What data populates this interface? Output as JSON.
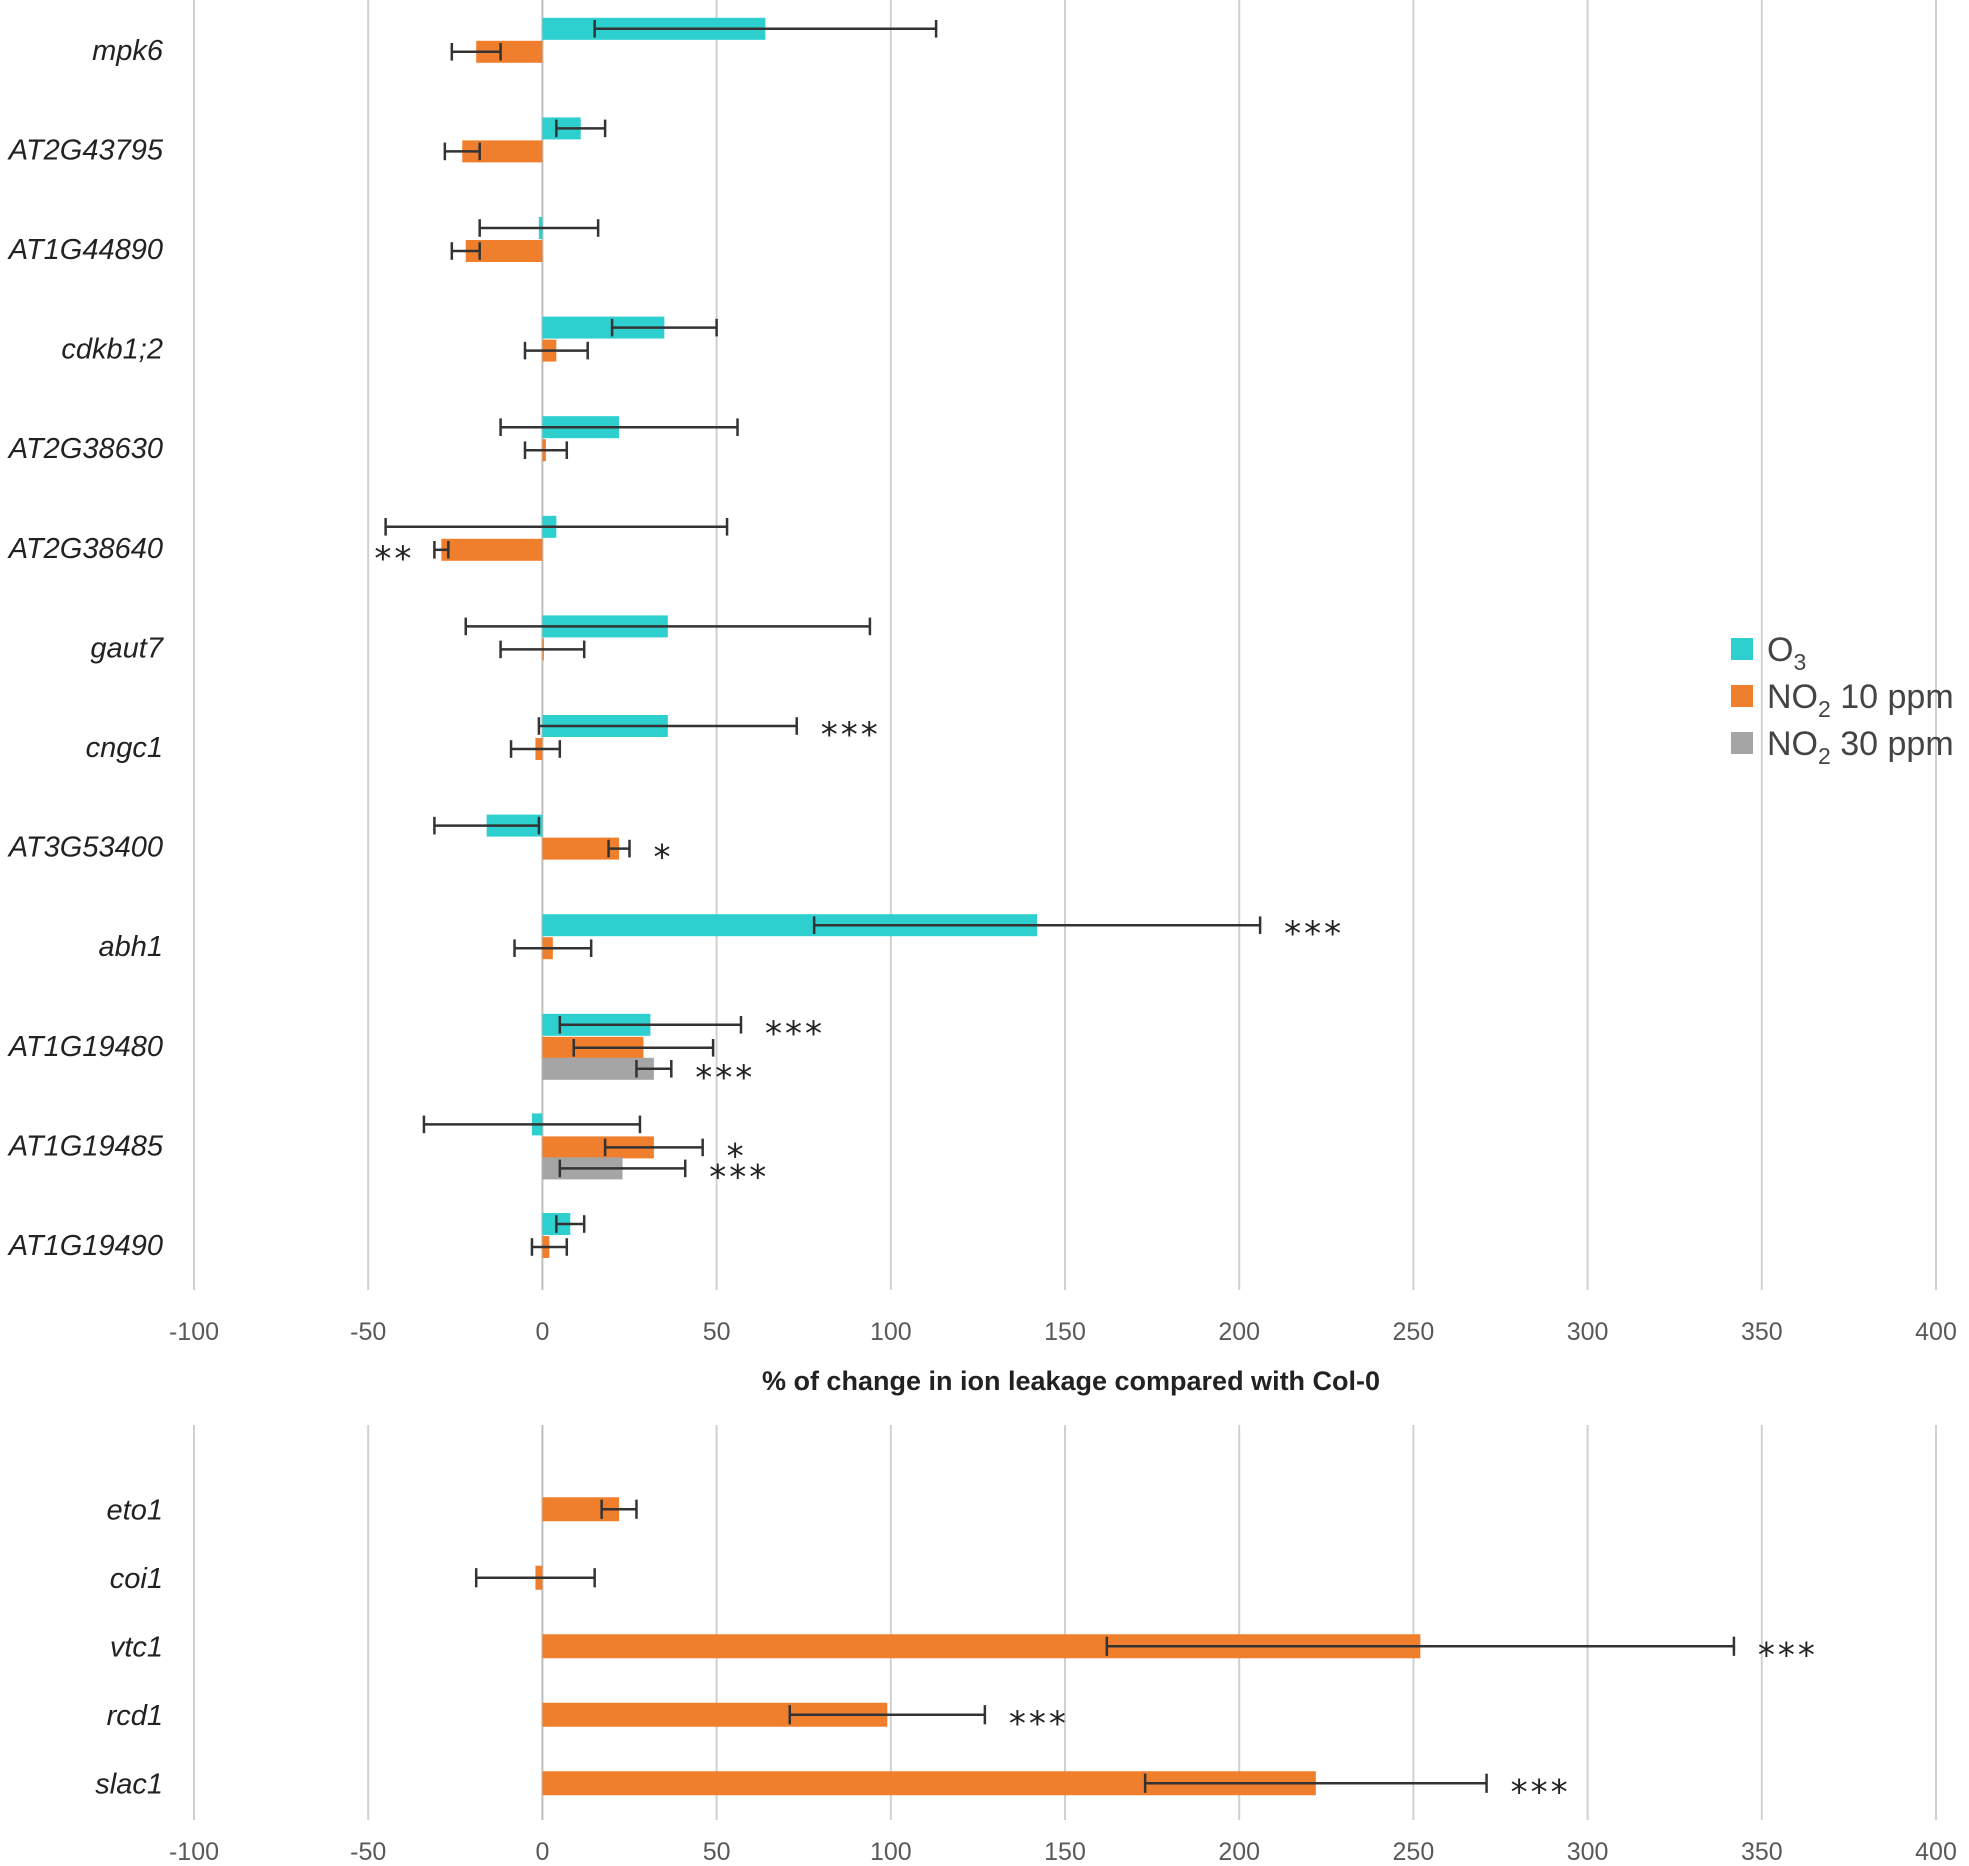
{
  "colors": {
    "O3": "#2ECFCF",
    "NO2_10ppm": "#F07F2D",
    "NO2_30ppm": "#A5A5A5",
    "grid": "#D0D0D0",
    "errorbar": "#333333"
  },
  "legend": {
    "items": [
      {
        "key": "O3",
        "text": "O",
        "sub": "3",
        "suffix": ""
      },
      {
        "key": "NO2_10ppm",
        "text": "NO",
        "sub": "2",
        "suffix": " 10 ppm"
      },
      {
        "key": "NO2_30ppm",
        "text": "NO",
        "sub": "2",
        "suffix": " 30 ppm"
      }
    ]
  },
  "chart_data": [
    {
      "type": "bar",
      "orientation": "horizontal",
      "xlabel": "% of change in ion leakage compared with Col-0",
      "xlim": [
        -100,
        400
      ],
      "xticks": [
        -100,
        -50,
        0,
        50,
        100,
        150,
        200,
        250,
        300,
        350,
        400
      ],
      "xtick_labels": [
        "-100",
        "-50",
        "0",
        "50",
        "100",
        "150",
        "200",
        "250",
        "300",
        "350",
        "400"
      ],
      "grid": "vertical",
      "categories": [
        "mpk6",
        "AT2G43795",
        "AT1G44890",
        "cdkb1;2",
        "AT2G38630",
        "AT2G38640",
        "gaut7",
        "cngc1",
        "AT3G53400",
        "abh1",
        "AT1G19480",
        "AT1G19485",
        "AT1G19490"
      ],
      "series": [
        {
          "name": "O3",
          "key": "O3",
          "values": [
            64,
            11,
            -1,
            35,
            22,
            4,
            36,
            36,
            -16,
            142,
            31,
            -3,
            8
          ],
          "errors": [
            49,
            7,
            17,
            15,
            34,
            49,
            58,
            37,
            15,
            64,
            26,
            31,
            4
          ],
          "significance": [
            "",
            "",
            "",
            "",
            "",
            "",
            "",
            "***",
            "",
            "***",
            "***",
            "",
            ""
          ]
        },
        {
          "name": "NO2 10 ppm",
          "key": "NO2_10ppm",
          "values": [
            -19,
            -23,
            -22,
            4,
            1,
            -29,
            0,
            -2,
            22,
            3,
            29,
            32,
            2
          ],
          "errors": [
            7,
            5,
            4,
            9,
            6,
            2,
            12,
            7,
            3,
            11,
            20,
            14,
            5
          ],
          "significance": [
            "",
            "",
            "",
            "",
            "",
            "**",
            "",
            "",
            "*",
            "",
            "",
            "*",
            ""
          ]
        },
        {
          "name": "NO2 30 ppm",
          "key": "NO2_30ppm",
          "values": [
            null,
            null,
            null,
            null,
            null,
            null,
            null,
            null,
            null,
            null,
            32,
            23,
            null
          ],
          "errors": [
            null,
            null,
            null,
            null,
            null,
            null,
            null,
            null,
            null,
            null,
            5,
            18,
            null
          ],
          "significance": [
            "",
            "",
            "",
            "",
            "",
            "",
            "",
            "",
            "",
            "",
            "***",
            "***",
            ""
          ]
        }
      ]
    },
    {
      "type": "bar",
      "orientation": "horizontal",
      "xlim": [
        -100,
        400
      ],
      "xticks": [
        -100,
        -50,
        0,
        50,
        100,
        150,
        200,
        250,
        300,
        350,
        400
      ],
      "xtick_labels": [
        "-100",
        "-50",
        "0",
        "50",
        "100",
        "150",
        "200",
        "250",
        "300",
        "350",
        "400"
      ],
      "grid": "vertical",
      "categories": [
        "eto1",
        "coi1",
        "vtc1",
        "rcd1",
        "slac1"
      ],
      "series": [
        {
          "name": "NO2 10 ppm",
          "key": "NO2_10ppm",
          "values": [
            22,
            -2,
            252,
            99,
            222
          ],
          "errors": [
            5,
            17,
            90,
            28,
            49
          ],
          "significance": [
            "",
            "",
            "***",
            "***",
            "***"
          ]
        }
      ]
    }
  ]
}
